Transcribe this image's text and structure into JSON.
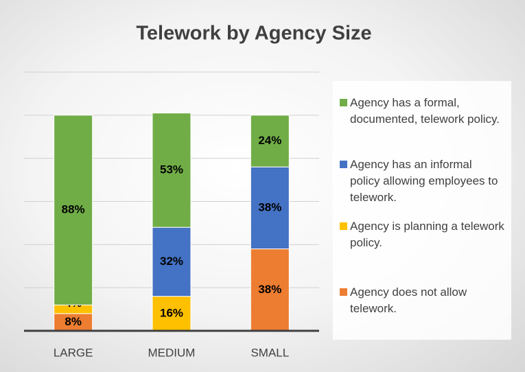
{
  "chart_data": {
    "type": "stacked_bar",
    "title": "Telework by Agency Size",
    "categories": [
      "LARGE",
      "MEDIUM",
      "SMALL"
    ],
    "series": [
      {
        "name": "Agency has a formal, documented, telework policy.",
        "color": "#70ad47",
        "values": [
          88,
          53,
          24
        ],
        "value_labels": [
          "88%",
          "53%",
          "24%"
        ]
      },
      {
        "name": "Agency has an informal policy allowing employees to telework.",
        "color": "#4472c4",
        "values": [
          0,
          32,
          38
        ],
        "value_labels": [
          null,
          "32%",
          "38%"
        ]
      },
      {
        "name": "Agency is planning a telework policy.",
        "color": "#ffc000",
        "values": [
          4,
          16,
          0
        ],
        "value_labels": [
          "4%",
          "16%",
          null
        ]
      },
      {
        "name": "Agency does not allow telework.",
        "color": "#ed7d31",
        "values": [
          8,
          0,
          38
        ],
        "value_labels": [
          "8%",
          null,
          "38%"
        ]
      }
    ],
    "ylim": [
      0,
      120
    ],
    "yticks": [
      0,
      20,
      40,
      60,
      80,
      100,
      120
    ],
    "grid": true,
    "legend": "right"
  }
}
